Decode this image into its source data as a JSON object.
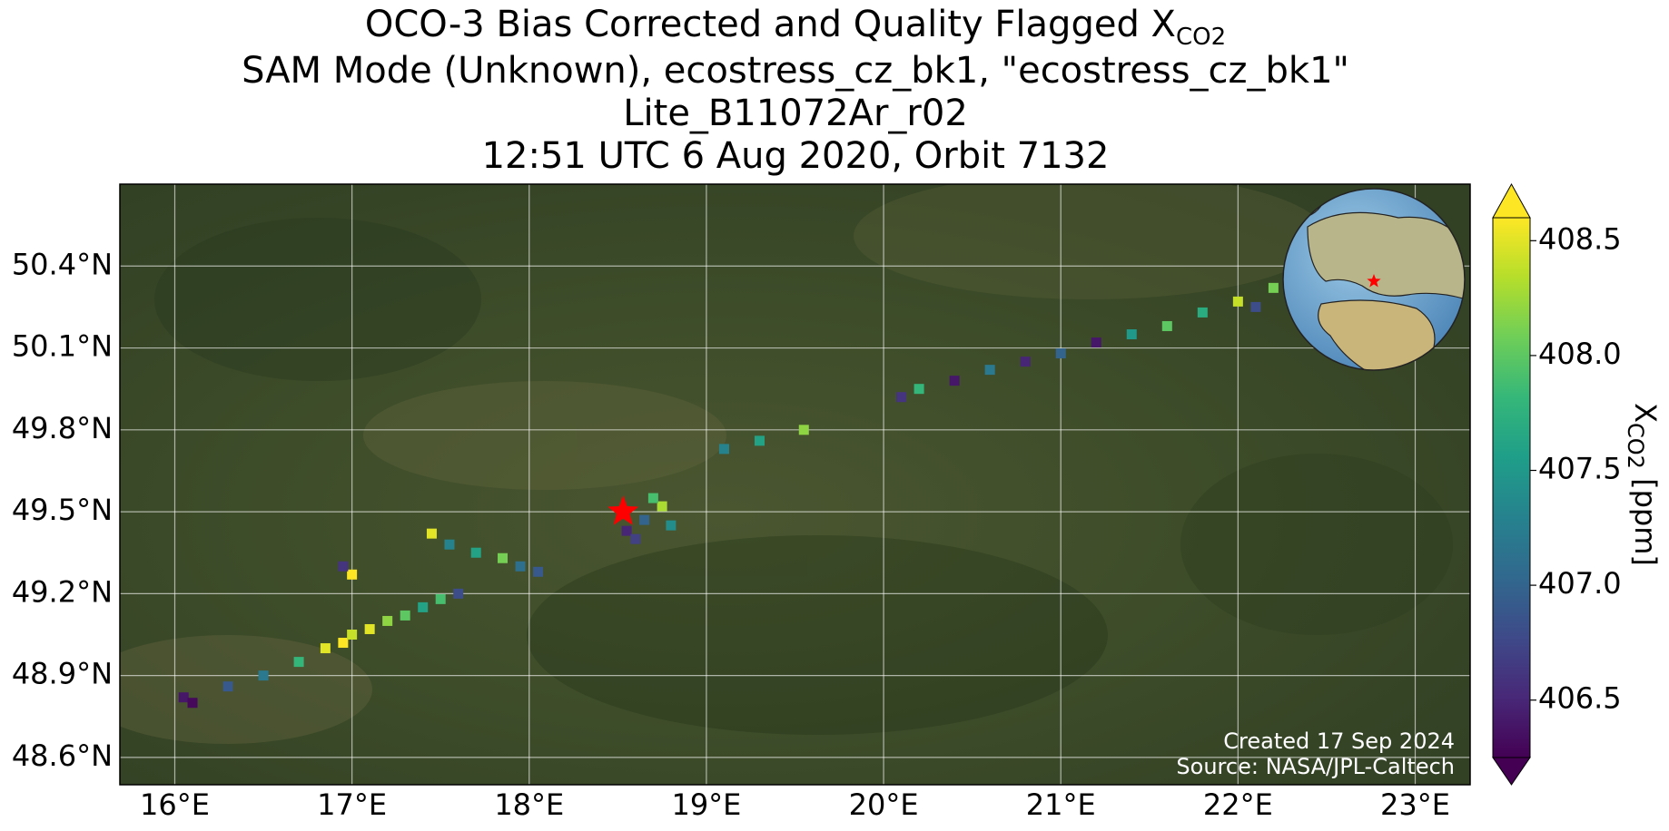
{
  "chart_data": {
    "type": "scatter",
    "title": {
      "main": "OCO-3 Bias Corrected and Quality Flagged X",
      "subscript": "CO2"
    },
    "subtitle_lines": [
      "SAM Mode (Unknown), ecostress_cz_bk1, \"ecostress_cz_bk1\"",
      "Lite_B11072Ar_r02",
      "12:51 UTC 6 Aug 2020, Orbit 7132"
    ],
    "annotations": [
      "Created 17 Sep 2024",
      "Source: NASA/JPL-Caltech"
    ],
    "colorbar_label": {
      "main": "X",
      "subscript": "CO2",
      "unit": " [ppm]"
    },
    "colormap": "viridis",
    "grid": true,
    "xlim": [
      15.69,
      23.31
    ],
    "ylim": [
      48.5,
      50.7
    ],
    "clim": [
      406.25,
      408.6
    ],
    "xticks": [
      {
        "value": 16,
        "label": "16°E"
      },
      {
        "value": 17,
        "label": "17°E"
      },
      {
        "value": 18,
        "label": "18°E"
      },
      {
        "value": 19,
        "label": "19°E"
      },
      {
        "value": 20,
        "label": "20°E"
      },
      {
        "value": 21,
        "label": "21°E"
      },
      {
        "value": 22,
        "label": "22°E"
      },
      {
        "value": 23,
        "label": "23°E"
      }
    ],
    "yticks": [
      {
        "value": 48.6,
        "label": "48.6°N"
      },
      {
        "value": 48.9,
        "label": "48.9°N"
      },
      {
        "value": 49.2,
        "label": "49.2°N"
      },
      {
        "value": 49.5,
        "label": "49.5°N"
      },
      {
        "value": 49.8,
        "label": "49.8°N"
      },
      {
        "value": 50.1,
        "label": "50.1°N"
      },
      {
        "value": 50.4,
        "label": "50.4°N"
      }
    ],
    "cticks": [
      {
        "value": 406.5,
        "label": "406.5"
      },
      {
        "value": 407,
        "label": "407.0"
      },
      {
        "value": 407.5,
        "label": "407.5"
      },
      {
        "value": 408,
        "label": "408.0"
      },
      {
        "value": 408.5,
        "label": "408.5"
      }
    ],
    "target": {
      "x": 18.53,
      "y": 49.5,
      "color": "#ff0000"
    },
    "x": [
      16.05,
      16.1,
      16.3,
      16.5,
      16.7,
      16.85,
      16.95,
      17.0,
      17.1,
      17.2,
      17.3,
      17.4,
      17.5,
      17.6,
      17.45,
      17.55,
      17.7,
      17.85,
      17.95,
      18.05,
      17.0,
      16.95,
      18.55,
      18.65,
      18.75,
      18.8,
      18.7,
      18.6,
      19.1,
      19.3,
      19.55,
      20.1,
      20.2,
      20.4,
      20.6,
      20.8,
      21.0,
      21.2,
      21.4,
      21.6,
      21.8,
      22.0,
      22.2,
      22.1
    ],
    "y": [
      48.82,
      48.8,
      48.86,
      48.9,
      48.95,
      49.0,
      49.02,
      49.05,
      49.07,
      49.1,
      49.12,
      49.15,
      49.18,
      49.2,
      49.42,
      49.38,
      49.35,
      49.33,
      49.3,
      49.28,
      49.27,
      49.3,
      49.43,
      49.47,
      49.52,
      49.45,
      49.55,
      49.4,
      49.73,
      49.76,
      49.8,
      49.92,
      49.95,
      49.98,
      50.02,
      50.05,
      50.08,
      50.12,
      50.15,
      50.18,
      50.23,
      50.27,
      50.32,
      50.25
    ],
    "values": [
      406.4,
      406.3,
      406.9,
      407.2,
      407.8,
      408.5,
      408.6,
      408.4,
      408.5,
      408.2,
      408.0,
      407.6,
      407.9,
      406.8,
      408.5,
      407.3,
      407.6,
      408.1,
      407.1,
      406.9,
      408.6,
      406.6,
      406.5,
      407.0,
      408.3,
      407.4,
      407.9,
      406.7,
      407.3,
      407.6,
      408.2,
      406.6,
      407.8,
      406.4,
      407.2,
      406.5,
      407.0,
      406.4,
      407.5,
      408.0,
      407.7,
      408.4,
      408.1,
      406.8
    ]
  }
}
